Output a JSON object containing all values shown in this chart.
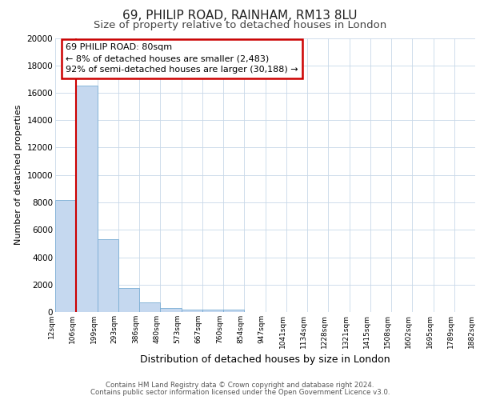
{
  "title1": "69, PHILIP ROAD, RAINHAM, RM13 8LU",
  "title2": "Size of property relative to detached houses in London",
  "xlabel": "Distribution of detached houses by size in London",
  "ylabel": "Number of detached properties",
  "annotation_title": "69 PHILIP ROAD: 80sqm",
  "annotation_line1": "← 8% of detached houses are smaller (2,483)",
  "annotation_line2": "92% of semi-detached houses are larger (30,188) →",
  "footer1": "Contains HM Land Registry data © Crown copyright and database right 2024.",
  "footer2": "Contains public sector information licensed under the Open Government Licence v3.0.",
  "bar_heights": [
    8200,
    16500,
    5300,
    1750,
    700,
    280,
    200,
    175,
    150,
    0,
    0,
    0,
    0,
    0,
    0,
    0,
    0,
    0,
    0,
    0
  ],
  "x_labels": [
    "12sqm",
    "106sqm",
    "199sqm",
    "293sqm",
    "386sqm",
    "480sqm",
    "573sqm",
    "667sqm",
    "760sqm",
    "854sqm",
    "947sqm",
    "1041sqm",
    "1134sqm",
    "1228sqm",
    "1321sqm",
    "1415sqm",
    "1508sqm",
    "1602sqm",
    "1695sqm",
    "1789sqm",
    "1882sqm"
  ],
  "bar_color": "#c5d8ef",
  "bar_edge_color": "#7aadd4",
  "marker_color": "#cc0000",
  "ylim": [
    0,
    20000
  ],
  "yticks": [
    0,
    2000,
    4000,
    6000,
    8000,
    10000,
    12000,
    14000,
    16000,
    18000,
    20000
  ],
  "background_color": "#ffffff",
  "grid_color": "#c8d8e8",
  "title1_fontsize": 11,
  "title2_fontsize": 9.5,
  "xlabel_fontsize": 9,
  "ylabel_fontsize": 8,
  "annotation_box_color": "#ffffff",
  "annotation_box_edge": "#cc0000",
  "annotation_fontsize": 8
}
